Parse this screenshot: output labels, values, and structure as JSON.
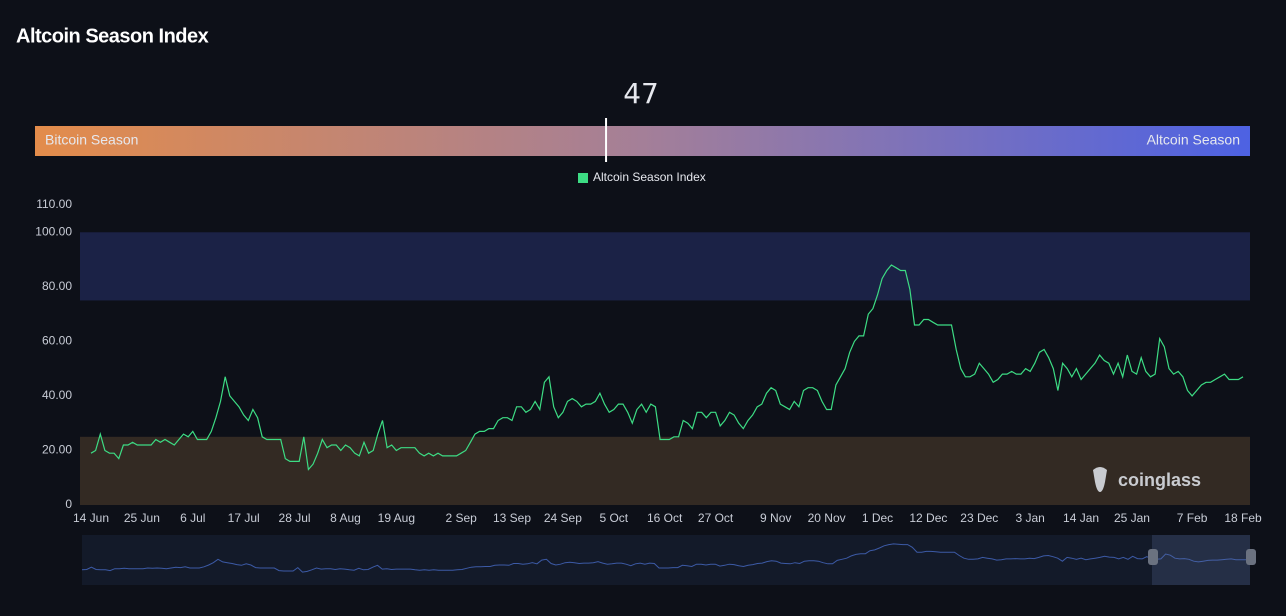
{
  "header": {
    "title": "Altcoin Season Index"
  },
  "gauge": {
    "value": 47,
    "range": [
      0,
      100
    ],
    "left_label": "Bitcoin Season",
    "right_label": "Altcoin Season",
    "colors": [
      "#e38c4b",
      "#a47f98",
      "#4d62e3"
    ]
  },
  "watermark": "coinglass",
  "chart_data": {
    "type": "line",
    "categories": [
      "14 Jun",
      null,
      null,
      null,
      null,
      null,
      null,
      null,
      null,
      null,
      null,
      "25 Jun",
      null,
      null,
      null,
      null,
      null,
      null,
      null,
      null,
      null,
      null,
      "6 Jul",
      null,
      null,
      null,
      null,
      null,
      null,
      null,
      null,
      null,
      null,
      "17 Jul",
      null,
      null,
      null,
      null,
      null,
      null,
      null,
      null,
      null,
      null,
      "28 Jul",
      null,
      null,
      null,
      null,
      null,
      null,
      null,
      null,
      null,
      null,
      "8 Aug",
      null,
      null,
      null,
      null,
      null,
      null,
      null,
      null,
      null,
      null,
      "19 Aug",
      null,
      null,
      null,
      null,
      null,
      null,
      null,
      null,
      null,
      null,
      null,
      null,
      null,
      "2 Sep",
      null,
      null,
      null,
      null,
      null,
      null,
      null,
      null,
      null,
      null,
      "13 Sep",
      null,
      null,
      null,
      null,
      null,
      null,
      null,
      null,
      null,
      null,
      "24 Sep",
      null,
      null,
      null,
      null,
      null,
      null,
      null,
      null,
      null,
      null,
      "5 Oct",
      null,
      null,
      null,
      null,
      null,
      null,
      null,
      null,
      null,
      null,
      "16 Oct",
      null,
      null,
      null,
      null,
      null,
      null,
      null,
      null,
      null,
      null,
      "27 Oct",
      null,
      null,
      null,
      null,
      null,
      null,
      null,
      null,
      null,
      null,
      null,
      null,
      "9 Nov",
      null,
      null,
      null,
      null,
      null,
      null,
      null,
      null,
      null,
      null,
      "20 Nov",
      null,
      null,
      null,
      null,
      null,
      null,
      null,
      null,
      null,
      null,
      "1 Dec",
      null,
      null,
      null,
      null,
      null,
      null,
      null,
      null,
      null,
      null,
      "12 Dec",
      null,
      null,
      null,
      null,
      null,
      null,
      null,
      null,
      null,
      null,
      "23 Dec",
      null,
      null,
      null,
      null,
      null,
      null,
      null,
      null,
      null,
      null,
      "3 Jan",
      null,
      null,
      null,
      null,
      null,
      null,
      null,
      null,
      null,
      null,
      "14 Jan",
      null,
      null,
      null,
      null,
      null,
      null,
      null,
      null,
      null,
      null,
      "25 Jan",
      null,
      null,
      null,
      null,
      null,
      null,
      null,
      null,
      null,
      null,
      null,
      null,
      "7 Feb",
      null,
      null,
      null,
      null,
      null,
      null,
      null,
      null,
      null,
      null,
      "18 Feb"
    ],
    "series": [
      {
        "name": "Altcoin Season Index",
        "color": "#3ddc84",
        "values": [
          19,
          20,
          26,
          20,
          19,
          19,
          17,
          22,
          22,
          23,
          22,
          22,
          22,
          22,
          24,
          23,
          24,
          23,
          22,
          24,
          26,
          25,
          27,
          24,
          24,
          24,
          27,
          32,
          38,
          47,
          40,
          38,
          36,
          33,
          31,
          35,
          32,
          25,
          24,
          24,
          24,
          24,
          17,
          16,
          16,
          16,
          25,
          13,
          15,
          19,
          24,
          21,
          22,
          22,
          20,
          22,
          21,
          19,
          18,
          23,
          19,
          20,
          26,
          31,
          21,
          22,
          20,
          21,
          21,
          21,
          21,
          19,
          18,
          19,
          18,
          19,
          18,
          18,
          18,
          18,
          19,
          20,
          23,
          26,
          27,
          27,
          28,
          28,
          31,
          32,
          32,
          31,
          36,
          36,
          34,
          35,
          38,
          35,
          45,
          47,
          36,
          32,
          34,
          38,
          39,
          38,
          36,
          37,
          37,
          38,
          41,
          37,
          34,
          35,
          37,
          37,
          34,
          30,
          35,
          37,
          34,
          37,
          36,
          24,
          24,
          24,
          25,
          25,
          31,
          30,
          28,
          34,
          34,
          32,
          34,
          34,
          29,
          31,
          34,
          33,
          30,
          28,
          31,
          33,
          36,
          37,
          41,
          43,
          42,
          37,
          36,
          35,
          38,
          36,
          42,
          43,
          43,
          42,
          38,
          35,
          35,
          44,
          47,
          50,
          56,
          60,
          62,
          62,
          70,
          72,
          77,
          83,
          86,
          88,
          87,
          86,
          86,
          79,
          66,
          66,
          68,
          68,
          67,
          66,
          66,
          66,
          66,
          57,
          50,
          47,
          47,
          48,
          52,
          50,
          48,
          45,
          46,
          48,
          48,
          49,
          48,
          48,
          50,
          49,
          52,
          56,
          57,
          54,
          50,
          42,
          52,
          50,
          47,
          50,
          46,
          48,
          50,
          52,
          55,
          53,
          52,
          48,
          52,
          47,
          55,
          49,
          48,
          54,
          49,
          47,
          48,
          61,
          58,
          50,
          48,
          49,
          47,
          42,
          40,
          42,
          44,
          45,
          45,
          46,
          47,
          48,
          46,
          46,
          46,
          47
        ]
      }
    ],
    "ylim": [
      0,
      110
    ],
    "yticks": [
      0,
      {
        "value": 20,
        "label": "20.00"
      },
      {
        "value": 40,
        "label": "40.00"
      },
      {
        "value": 60,
        "label": "60.00"
      },
      {
        "value": 80,
        "label": "80.00"
      },
      {
        "value": 100,
        "label": "100.00"
      },
      {
        "value": 110,
        "label": "110.00"
      }
    ],
    "bands": [
      {
        "from": 75,
        "to": 100,
        "color": "#1b2246"
      },
      {
        "from": 0,
        "to": 25,
        "color": "#332a23"
      }
    ],
    "legend": "top"
  }
}
